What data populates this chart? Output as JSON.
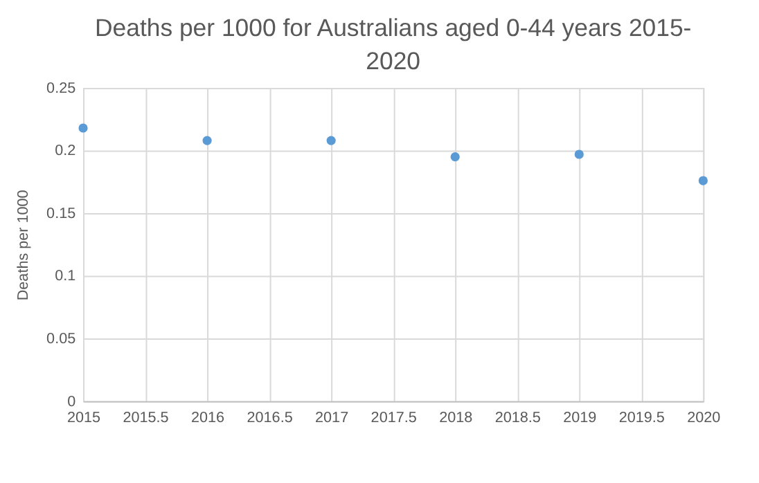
{
  "chart_data": {
    "type": "scatter",
    "title": "Deaths per 1000 for Australians aged 0-44 years 2015-2020",
    "ylabel": "Deaths per 1000",
    "x": [
      2015,
      2016,
      2017,
      2018,
      2019,
      2020
    ],
    "series": [
      {
        "color": "#5b9bd5",
        "values": [
          0.218,
          0.208,
          0.208,
          0.195,
          0.197,
          0.176
        ]
      }
    ],
    "xlim": [
      2015,
      2020
    ],
    "xticks": [
      2015,
      2015.5,
      2016,
      2016.5,
      2017,
      2017.5,
      2018,
      2018.5,
      2019,
      2019.5,
      2020
    ],
    "ylim": [
      0,
      0.25
    ],
    "yticks": [
      0,
      0.05,
      0.1,
      0.15,
      0.2,
      0.25
    ],
    "grid": true,
    "marker": "circle",
    "legend": false
  }
}
